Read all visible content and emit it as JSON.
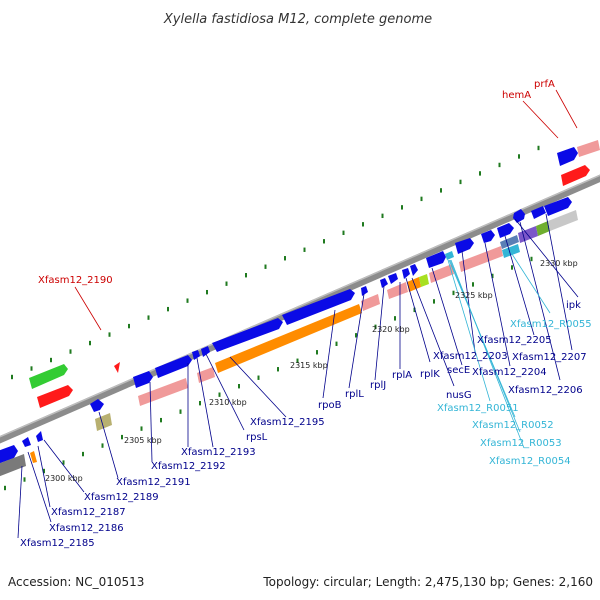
{
  "title": "Xylella fastidiosa M12, complete genome",
  "footer": {
    "accession": "Accession: NC_010513",
    "summary": "Topology: circular; Length: 2,475,130 bp; Genes: 2,160"
  },
  "colors": {
    "gene_blue": "#0a0ae6",
    "rrna_salmon": "#f09a9a",
    "cds_orange": "#ff8c00",
    "red_feature": "#ff1a1a",
    "green_feature": "#33cc33",
    "khaki": "#b8b070",
    "gray_feature": "#7a7a7a",
    "label_blue": "#00008b",
    "label_red": "#cc0000",
    "label_cyan": "#33b5d6",
    "axis_gray": "#8c8c8c",
    "tick_green": "#1f7a1f"
  },
  "ruler": {
    "ticks": [
      "2300 kbp",
      "2305 kbp",
      "2310 kbp",
      "2315 kbp",
      "2320 kbp",
      "2325 kbp",
      "2330 kbp"
    ]
  },
  "labels": {
    "blue": [
      "Xfasm12_2185",
      "Xfasm12_2186",
      "Xfasm12_2187",
      "Xfasm12_2189",
      "Xfasm12_2191",
      "Xfasm12_2192",
      "Xfasm12_2193",
      "rpsL",
      "Xfasm12_2195",
      "rpoB",
      "rplL",
      "rplJ",
      "rplA",
      "rplK",
      "nusG",
      "secE",
      "Xfasm12_2203",
      "Xfasm12_2204",
      "Xfasm12_2205",
      "Xfasm12_2206",
      "Xfasm12_2207",
      "ipk"
    ],
    "cyan": [
      "Xfasm12_R0051",
      "Xfasm12_R0052",
      "Xfasm12_R0053",
      "Xfasm12_R0054",
      "Xfasm12_R0055"
    ],
    "red": [
      "Xfasm12_2190",
      "hemA",
      "prfA"
    ]
  }
}
